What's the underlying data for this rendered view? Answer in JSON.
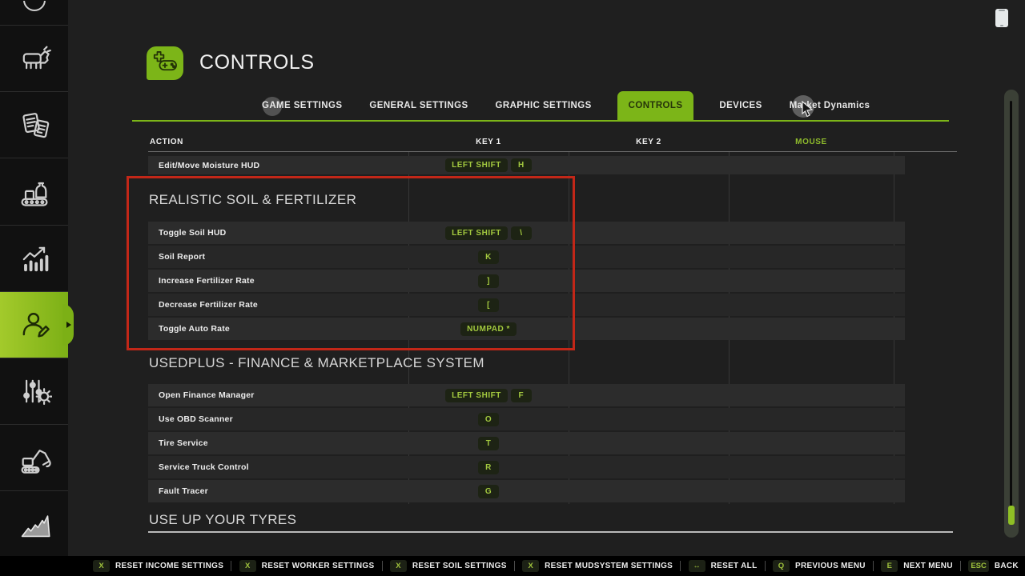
{
  "header": {
    "title": "CONTROLS"
  },
  "tabs": [
    {
      "label": "GAME SETTINGS",
      "active": false
    },
    {
      "label": "GENERAL SETTINGS",
      "active": false
    },
    {
      "label": "GRAPHIC SETTINGS",
      "active": false
    },
    {
      "label": "CONTROLS",
      "active": true
    },
    {
      "label": "DEVICES",
      "active": false
    },
    {
      "label": "Market Dynamics",
      "active": false
    }
  ],
  "table": {
    "headers": {
      "action": "ACTION",
      "key1": "KEY 1",
      "key2": "KEY 2",
      "mouse": "MOUSE"
    },
    "sections": [
      {
        "title": "",
        "highlighted": false,
        "rows": [
          {
            "action": "Edit/Move Moisture HUD",
            "keys": [
              "LEFT SHIFT",
              "H"
            ]
          }
        ]
      },
      {
        "title": "REALISTIC SOIL & FERTILIZER",
        "highlighted": true,
        "rows": [
          {
            "action": "Toggle Soil HUD",
            "keys": [
              "LEFT SHIFT",
              "\\"
            ]
          },
          {
            "action": "Soil Report",
            "keys": [
              "K"
            ]
          },
          {
            "action": "Increase Fertilizer Rate",
            "keys": [
              "]"
            ]
          },
          {
            "action": "Decrease Fertilizer Rate",
            "keys": [
              "["
            ]
          },
          {
            "action": "Toggle Auto Rate",
            "keys": [
              "NUMPAD *"
            ]
          }
        ]
      },
      {
        "title": "USEDPLUS - FINANCE & MARKETPLACE SYSTEM",
        "highlighted": false,
        "rows": [
          {
            "action": "Open Finance Manager",
            "keys": [
              "LEFT SHIFT",
              "F"
            ]
          },
          {
            "action": "Use OBD Scanner",
            "keys": [
              "O"
            ]
          },
          {
            "action": "Tire Service",
            "keys": [
              "T"
            ]
          },
          {
            "action": "Service Truck Control",
            "keys": [
              "R"
            ]
          },
          {
            "action": "Fault Tracer",
            "keys": [
              "G"
            ]
          }
        ]
      },
      {
        "title": "USE UP YOUR TYRES",
        "highlighted": false,
        "rows": []
      }
    ]
  },
  "bottom_bar": [
    {
      "key": "X",
      "label": "RESET INCOME SETTINGS"
    },
    {
      "key": "X",
      "label": "RESET WORKER SETTINGS"
    },
    {
      "key": "X",
      "label": "RESET SOIL SETTINGS"
    },
    {
      "key": "X",
      "label": "RESET MUDSYSTEM SETTINGS"
    },
    {
      "key": "↔",
      "label": "RESET ALL"
    },
    {
      "key": "Q",
      "label": "PREVIOUS MENU"
    },
    {
      "key": "E",
      "label": "NEXT MENU"
    },
    {
      "key": "ESC",
      "label": "BACK"
    }
  ],
  "sidebar": [
    {
      "icon": "map-icon",
      "active": false
    },
    {
      "icon": "animals-icon",
      "active": false
    },
    {
      "icon": "contracts-icon",
      "active": false
    },
    {
      "icon": "production-icon",
      "active": false
    },
    {
      "icon": "statistics-icon",
      "active": false
    },
    {
      "icon": "player-settings-icon",
      "active": true
    },
    {
      "icon": "mod-settings-icon",
      "active": false
    },
    {
      "icon": "construction-icon",
      "active": false
    },
    {
      "icon": "prices-icon",
      "active": false
    }
  ],
  "colors": {
    "accent": "#7cb518",
    "key_text": "#a3c93f",
    "highlight_box": "#c22718",
    "mouse_header": "#8fbb2c"
  }
}
